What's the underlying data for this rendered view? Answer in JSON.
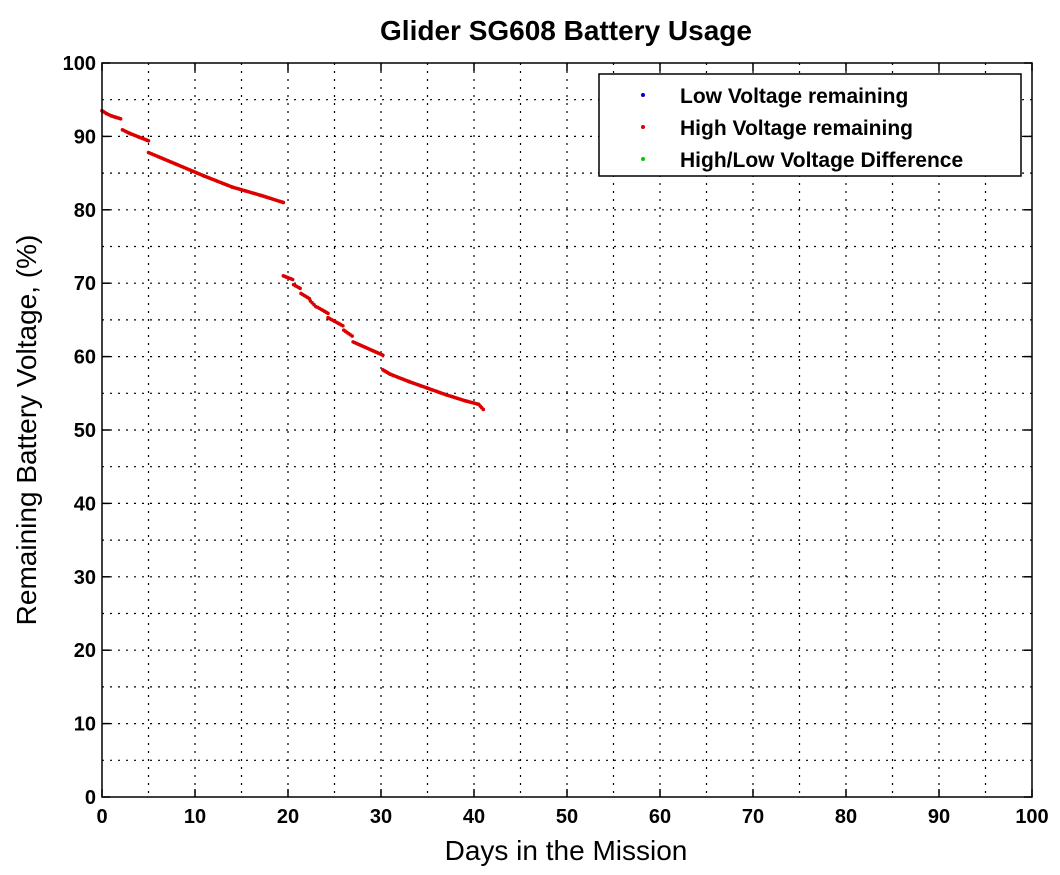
{
  "chart_data": {
    "type": "scatter",
    "title": "Glider SG608 Battery Usage",
    "xlabel": "Days in the Mission",
    "ylabel": "Remaining Battery Voltage, (%)",
    "xlim": [
      0,
      100
    ],
    "ylim": [
      0,
      100
    ],
    "xticks": [
      0,
      10,
      20,
      30,
      40,
      50,
      60,
      70,
      80,
      90,
      100
    ],
    "yticks": [
      0,
      10,
      20,
      30,
      40,
      50,
      60,
      70,
      80,
      90,
      100
    ],
    "grid": true,
    "legend_position": "top-right",
    "series": [
      {
        "name": "Low Voltage remaining",
        "color": "#0000cc",
        "points": []
      },
      {
        "name": "High Voltage remaining",
        "color": "#dd0000",
        "segments": [
          {
            "x": [
              0.0,
              0.5,
              1.0,
              1.5,
              2.0
            ],
            "y": [
              93.5,
              93.1,
              92.8,
              92.6,
              92.4
            ]
          },
          {
            "x": [
              2.2,
              3.0,
              4.0,
              5.0
            ],
            "y": [
              90.9,
              90.4,
              89.9,
              89.4
            ]
          },
          {
            "x": [
              5.0,
              8.0,
              11.0,
              14.0,
              17.0,
              19.5
            ],
            "y": [
              87.8,
              86.2,
              84.6,
              83.1,
              82.0,
              81.0
            ]
          },
          {
            "x": [
              19.5,
              20.5
            ],
            "y": [
              71.0,
              70.5
            ]
          },
          {
            "x": [
              20.6,
              21.3
            ],
            "y": [
              69.8,
              69.3
            ]
          },
          {
            "x": [
              21.4,
              22.3
            ],
            "y": [
              68.6,
              67.9
            ]
          },
          {
            "x": [
              22.4,
              23.0
            ],
            "y": [
              67.6,
              66.8
            ]
          },
          {
            "x": [
              23.2,
              24.3
            ],
            "y": [
              66.7,
              65.9
            ]
          },
          {
            "x": [
              24.3,
              25.9
            ],
            "y": [
              65.3,
              64.2
            ]
          },
          {
            "x": [
              26.0,
              26.9
            ],
            "y": [
              63.6,
              62.8
            ]
          },
          {
            "x": [
              27.0,
              30.2
            ],
            "y": [
              62.0,
              60.2
            ]
          },
          {
            "x": [
              30.2,
              31.0,
              33.0,
              35.0,
              37.0,
              39.0,
              40.5,
              41.0
            ],
            "y": [
              58.2,
              57.6,
              56.6,
              55.7,
              54.8,
              54.0,
              53.5,
              52.8
            ]
          }
        ]
      },
      {
        "name": "High/Low Voltage Difference",
        "color": "#00cc00",
        "points": []
      }
    ]
  }
}
